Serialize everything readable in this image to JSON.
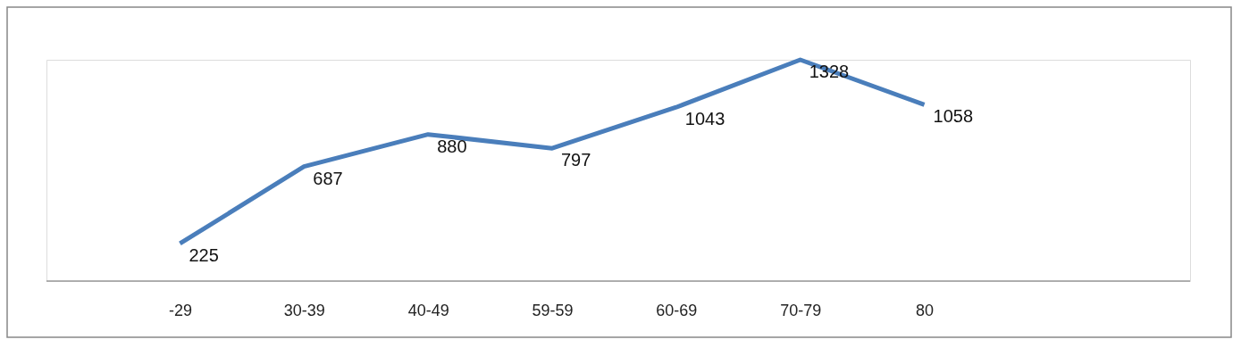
{
  "chart_data": {
    "type": "line",
    "categories": [
      "-29",
      "30-39",
      "40-49",
      "59-59",
      "60-69",
      "70-79",
      "80"
    ],
    "series": [
      {
        "color": "#4a7ebb",
        "values": [
          225,
          687,
          880,
          797,
          1043,
          1328,
          1058
        ]
      }
    ],
    "data_labels": true,
    "marker": "none",
    "line_style": "solid"
  }
}
